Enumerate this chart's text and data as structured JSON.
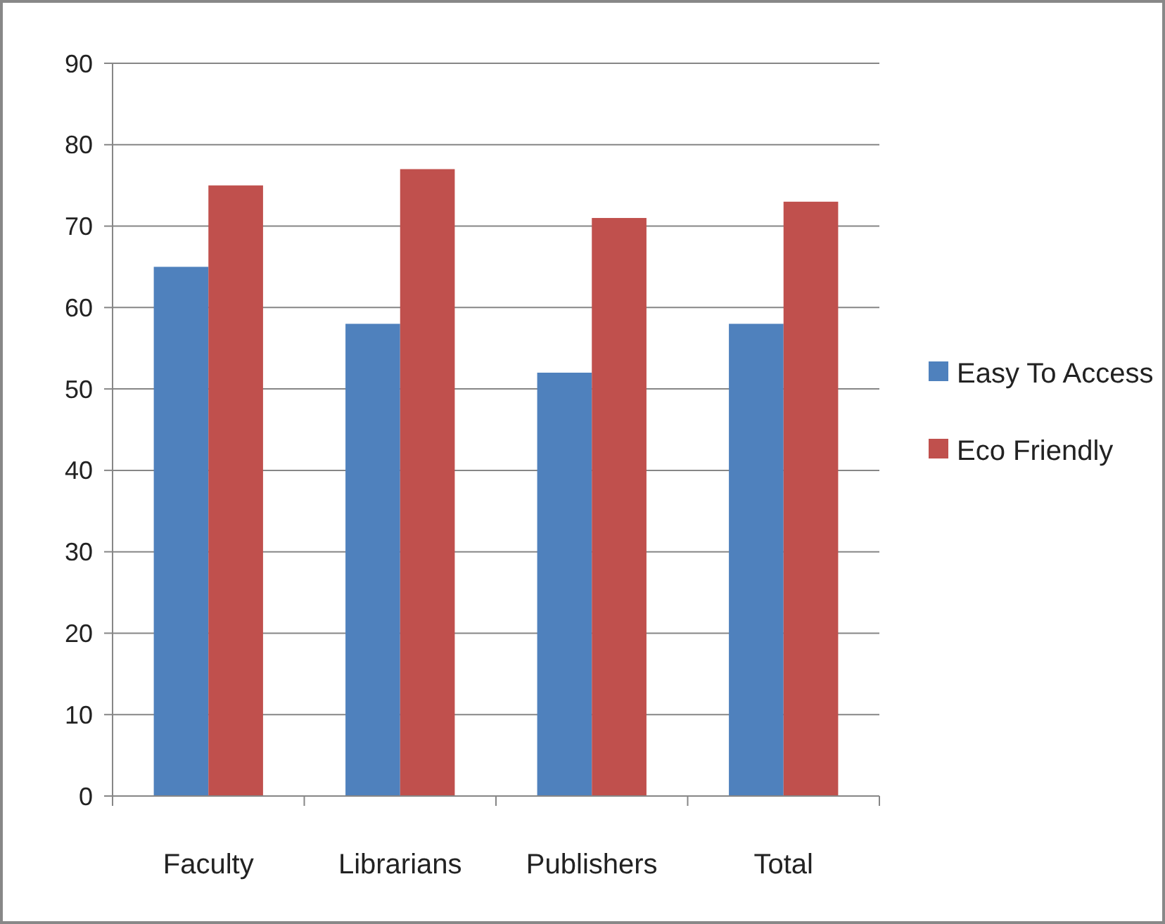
{
  "chart_data": {
    "type": "bar",
    "categories": [
      "Faculty",
      "Librarians",
      "Publishers",
      "Total"
    ],
    "series": [
      {
        "name": "Easy To Access",
        "color": "#4f81bd",
        "values": [
          65,
          58,
          52,
          58
        ]
      },
      {
        "name": "Eco Friendly",
        "color": "#c0504d",
        "values": [
          75,
          77,
          71,
          73
        ]
      }
    ],
    "ylim": [
      0,
      90
    ],
    "yticks": [
      0,
      10,
      20,
      30,
      40,
      50,
      60,
      70,
      80,
      90
    ],
    "grid": "y",
    "legend": "right"
  }
}
